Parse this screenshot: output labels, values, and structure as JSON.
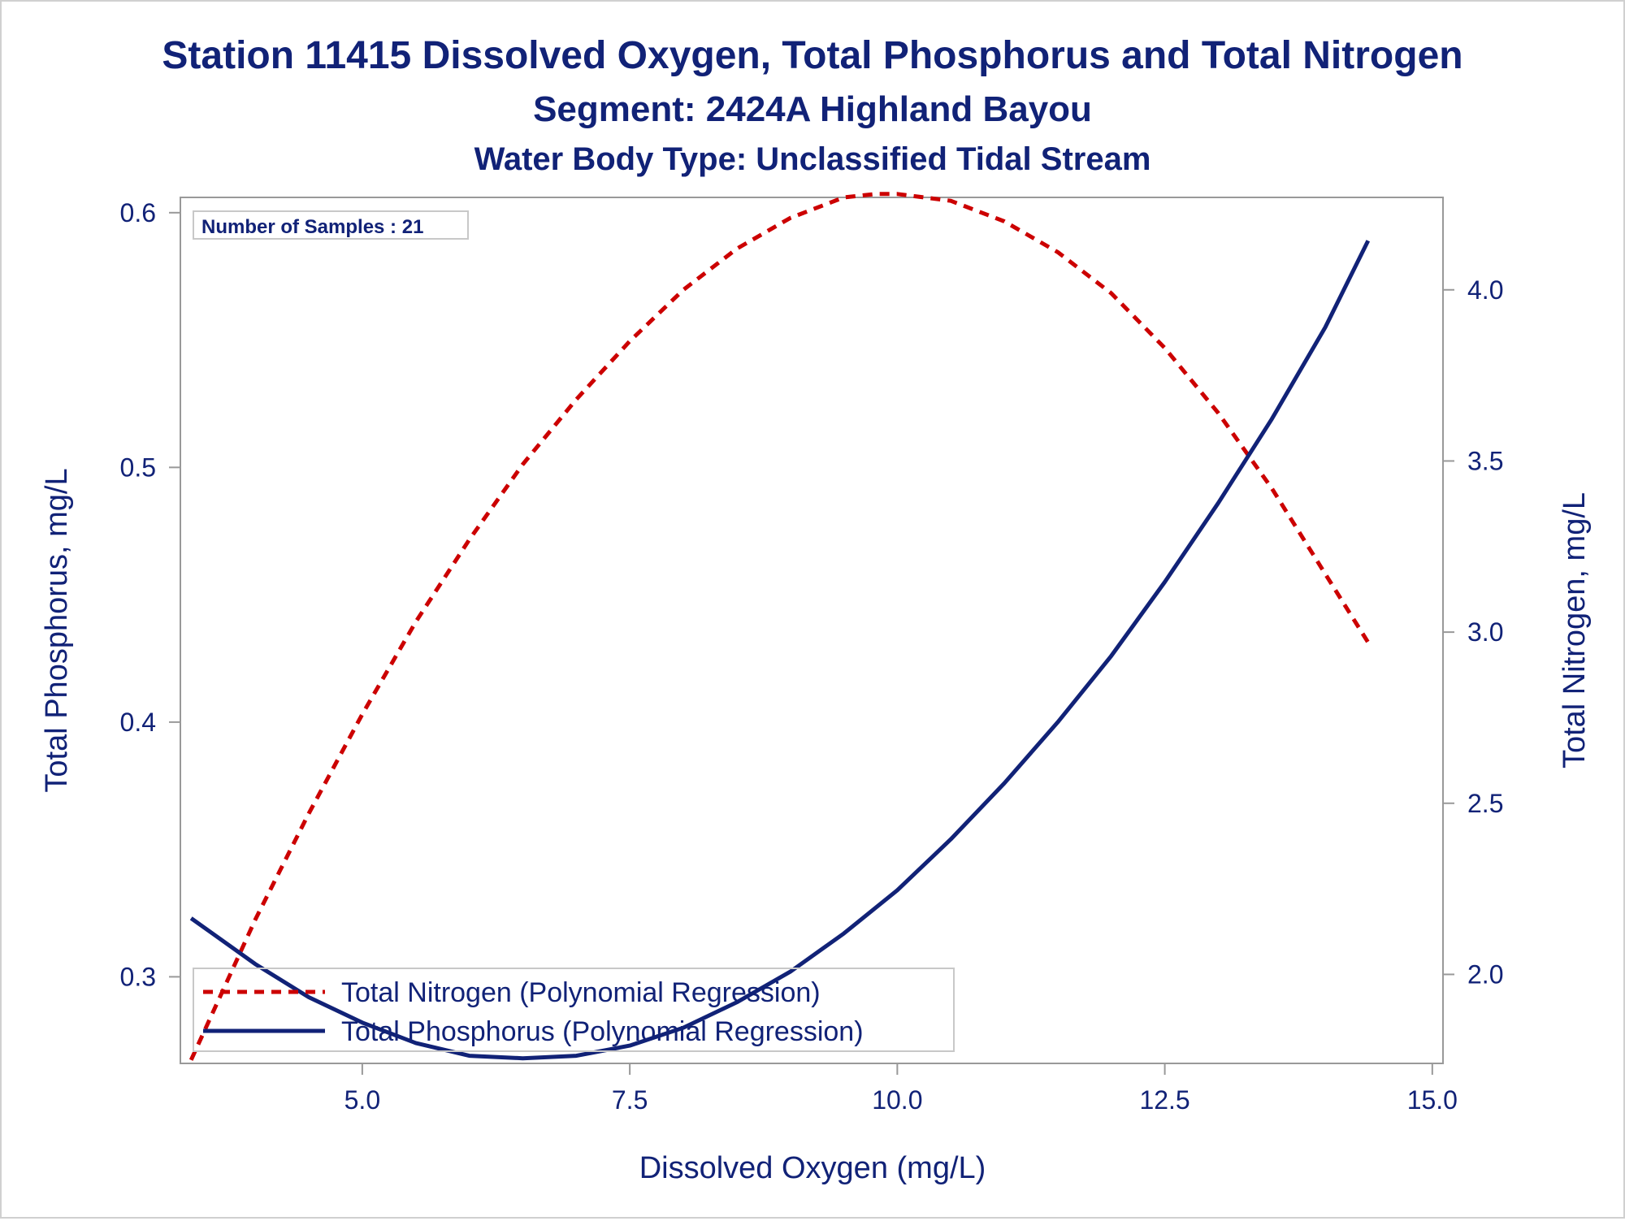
{
  "chart_data": {
    "type": "line",
    "title": "Station 11415  Dissolved Oxygen, Total Phosphorus and Total Nitrogen",
    "subtitle": "Segment: 2424A  Highland Bayou",
    "subtitle2": "Water Body Type: Unclassified Tidal Stream",
    "xlabel": "Dissolved Oxygen (mg/L)",
    "ylabel_left": "Total Phosphorus, mg/L",
    "ylabel_right": "Total Nitrogen, mg/L",
    "xlim": [
      3.3,
      15.1
    ],
    "ylim_left": [
      0.266,
      0.606
    ],
    "ylim_right": [
      1.74,
      4.27
    ],
    "x_ticks": [
      "5.0",
      "7.5",
      "10.0",
      "12.5",
      "15.0"
    ],
    "x_tick_values": [
      5.0,
      7.5,
      10.0,
      12.5,
      15.0
    ],
    "y_left_ticks": [
      "0.3",
      "0.4",
      "0.5",
      "0.6"
    ],
    "y_left_tick_values": [
      0.3,
      0.4,
      0.5,
      0.6
    ],
    "y_right_ticks": [
      "2.0",
      "2.5",
      "3.0",
      "3.5",
      "4.0"
    ],
    "y_right_tick_values": [
      2.0,
      2.5,
      3.0,
      3.5,
      4.0
    ],
    "annotation": "Number of Samples : 21",
    "legend_position": "bottom-left",
    "series": [
      {
        "name": "Total Nitrogen (Polynomial Regression)",
        "axis": "right",
        "style": "dashed",
        "color": "#cc0000",
        "x": [
          3.4,
          4.0,
          4.5,
          5.0,
          5.5,
          6.0,
          6.5,
          7.0,
          7.5,
          8.0,
          8.5,
          9.0,
          9.5,
          9.8,
          10.0,
          10.5,
          11.0,
          11.5,
          12.0,
          12.5,
          13.0,
          13.5,
          14.0,
          14.4
        ],
        "y": [
          1.75,
          2.16,
          2.47,
          2.76,
          3.03,
          3.27,
          3.49,
          3.68,
          3.85,
          4.0,
          4.12,
          4.21,
          4.27,
          4.28,
          4.28,
          4.26,
          4.2,
          4.11,
          3.99,
          3.83,
          3.64,
          3.42,
          3.17,
          2.97
        ]
      },
      {
        "name": "Total Phosphorus (Polynomial Regression)",
        "axis": "left",
        "style": "solid",
        "color": "#112277",
        "x": [
          3.4,
          4.0,
          4.5,
          5.0,
          5.5,
          6.0,
          6.5,
          7.0,
          7.5,
          8.0,
          8.5,
          9.0,
          9.5,
          10.0,
          10.5,
          11.0,
          11.5,
          12.0,
          12.5,
          13.0,
          13.5,
          14.0,
          14.4
        ],
        "y": [
          0.323,
          0.305,
          0.292,
          0.282,
          0.274,
          0.269,
          0.268,
          0.269,
          0.273,
          0.28,
          0.29,
          0.302,
          0.317,
          0.334,
          0.354,
          0.376,
          0.4,
          0.426,
          0.455,
          0.486,
          0.519,
          0.555,
          0.589
        ]
      }
    ]
  }
}
